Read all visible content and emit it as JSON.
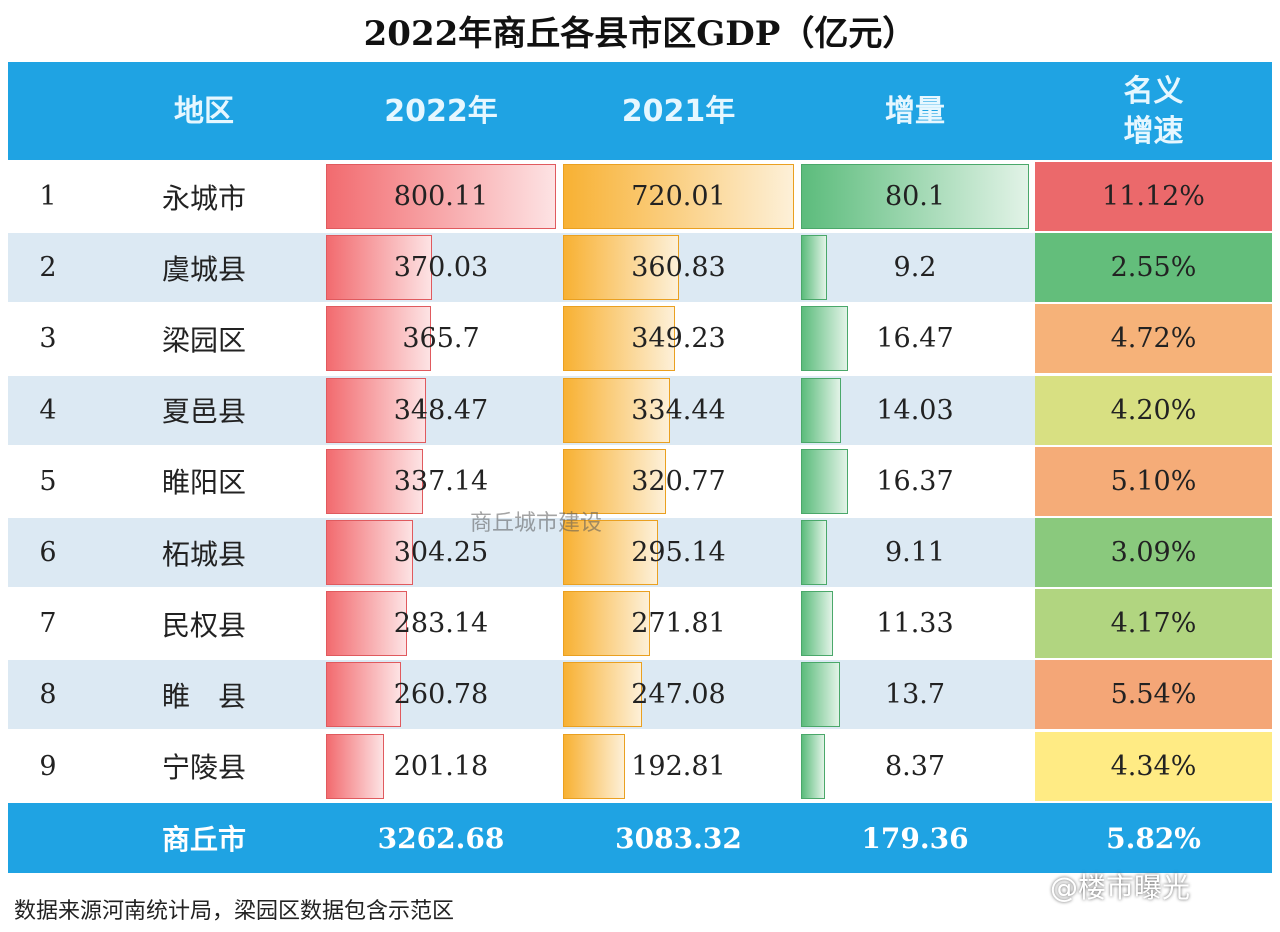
{
  "title": "2022年商丘各县市区GDP（亿元）",
  "table": {
    "header": [
      "地区",
      "2022年",
      "2021年",
      "增量",
      "名义增速"
    ],
    "rows": [
      [
        "1",
        "永城市",
        "800.11",
        "720.01",
        "80.1",
        "11.12%"
      ],
      [
        "2",
        "虞城县",
        "370.03",
        "360.83",
        "9.2",
        "2.55%"
      ],
      [
        "3",
        "梁园区",
        "365.7",
        "349.23",
        "16.47",
        "4.72%"
      ],
      [
        "4",
        "夏邑县",
        "348.47",
        "334.44",
        "14.03",
        "4.20%"
      ],
      [
        "5",
        "睢阳区",
        "337.14",
        "320.77",
        "16.37",
        "5.10%"
      ],
      [
        "6",
        "柘城县",
        "304.25",
        "295.14",
        "9.11",
        "3.09%"
      ],
      [
        "7",
        "民权县",
        "283.14",
        "271.81",
        "11.33",
        "4.17%"
      ],
      [
        "8",
        "睢　县",
        "260.78",
        "247.08",
        "13.7",
        "5.54%"
      ],
      [
        "9",
        "宁陵县",
        "201.18",
        "192.81",
        "8.37",
        "4.34%"
      ]
    ],
    "footer": [
      "商丘市",
      "3262.68",
      "3083.32",
      "179.36",
      "5.82%"
    ]
  },
  "note": "数据来源河南统计局，梁园区数据包含示范区",
  "watermark": "商丘城市建设",
  "credit": "@楼市曝光"
}
